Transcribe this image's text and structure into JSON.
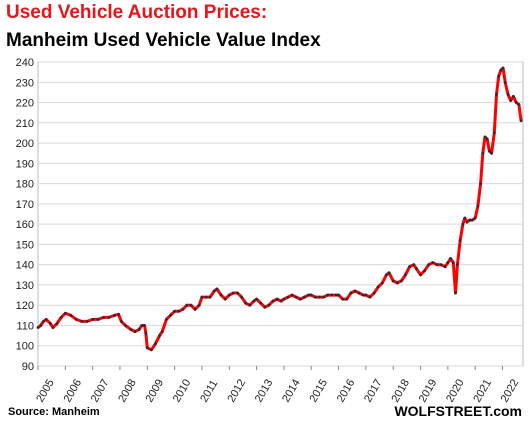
{
  "title": "Used Vehicle Auction Prices:",
  "subtitle": "Manheim Used Vehicle Value Index",
  "source": "Source: Manheim",
  "watermark": "WOLFSTREET.com",
  "colors": {
    "title": "#e8131b",
    "line": "#ff0000",
    "marker": "#2b2b3a",
    "grid": "#d9d9d9"
  },
  "chart_data": {
    "type": "line",
    "title": "Manheim Used Vehicle Value Index",
    "xlabel": "",
    "ylabel": "",
    "ylim": [
      90,
      240
    ],
    "xlim": [
      2005,
      2022.75
    ],
    "y_ticks": [
      90,
      100,
      110,
      120,
      130,
      140,
      150,
      160,
      170,
      180,
      190,
      200,
      210,
      220,
      230,
      240
    ],
    "x_tick_labels": [
      "2005",
      "2006",
      "2007",
      "2008",
      "2009",
      "2010",
      "2011",
      "2012",
      "2013",
      "2014",
      "2015",
      "2016",
      "2017",
      "2018",
      "2019",
      "2020",
      "2021",
      "2022"
    ],
    "grid": true,
    "series": [
      {
        "points": [
          [
            2005.0,
            109
          ],
          [
            2005.1,
            110
          ],
          [
            2005.2,
            112
          ],
          [
            2005.3,
            113
          ],
          [
            2005.45,
            111
          ],
          [
            2005.55,
            109
          ],
          [
            2005.7,
            111
          ],
          [
            2005.85,
            114
          ],
          [
            2006.0,
            116
          ],
          [
            2006.2,
            115
          ],
          [
            2006.4,
            113
          ],
          [
            2006.6,
            112
          ],
          [
            2006.8,
            112
          ],
          [
            2007.0,
            113
          ],
          [
            2007.2,
            113
          ],
          [
            2007.4,
            114
          ],
          [
            2007.6,
            114
          ],
          [
            2007.8,
            115
          ],
          [
            2007.95,
            115.5
          ],
          [
            2008.05,
            112
          ],
          [
            2008.2,
            110
          ],
          [
            2008.4,
            108
          ],
          [
            2008.55,
            107
          ],
          [
            2008.7,
            108
          ],
          [
            2008.8,
            110
          ],
          [
            2008.9,
            110
          ],
          [
            2008.95,
            106
          ],
          [
            2009.0,
            99
          ],
          [
            2009.15,
            98
          ],
          [
            2009.3,
            101
          ],
          [
            2009.45,
            105
          ],
          [
            2009.55,
            107
          ],
          [
            2009.7,
            113
          ],
          [
            2009.85,
            115
          ],
          [
            2010.0,
            117
          ],
          [
            2010.15,
            117
          ],
          [
            2010.3,
            118
          ],
          [
            2010.45,
            120
          ],
          [
            2010.6,
            120
          ],
          [
            2010.75,
            118
          ],
          [
            2010.9,
            120
          ],
          [
            2011.0,
            124
          ],
          [
            2011.15,
            124
          ],
          [
            2011.3,
            124
          ],
          [
            2011.45,
            127
          ],
          [
            2011.55,
            128
          ],
          [
            2011.7,
            125
          ],
          [
            2011.85,
            123
          ],
          [
            2012.0,
            125
          ],
          [
            2012.15,
            126
          ],
          [
            2012.3,
            126
          ],
          [
            2012.45,
            124
          ],
          [
            2012.6,
            121
          ],
          [
            2012.75,
            120
          ],
          [
            2012.9,
            122
          ],
          [
            2013.0,
            123
          ],
          [
            2013.15,
            121
          ],
          [
            2013.3,
            119
          ],
          [
            2013.45,
            120
          ],
          [
            2013.6,
            122
          ],
          [
            2013.75,
            123
          ],
          [
            2013.9,
            122
          ],
          [
            2014.0,
            123
          ],
          [
            2014.15,
            124
          ],
          [
            2014.3,
            125
          ],
          [
            2014.45,
            124
          ],
          [
            2014.6,
            123
          ],
          [
            2014.75,
            124
          ],
          [
            2014.9,
            125
          ],
          [
            2015.0,
            125
          ],
          [
            2015.15,
            124
          ],
          [
            2015.3,
            124
          ],
          [
            2015.45,
            124
          ],
          [
            2015.6,
            125
          ],
          [
            2015.75,
            125
          ],
          [
            2015.9,
            125
          ],
          [
            2016.0,
            125
          ],
          [
            2016.15,
            123
          ],
          [
            2016.3,
            123
          ],
          [
            2016.45,
            126
          ],
          [
            2016.6,
            127
          ],
          [
            2016.75,
            126
          ],
          [
            2016.9,
            125
          ],
          [
            2017.0,
            125
          ],
          [
            2017.15,
            124
          ],
          [
            2017.3,
            126
          ],
          [
            2017.45,
            129
          ],
          [
            2017.6,
            131
          ],
          [
            2017.75,
            135
          ],
          [
            2017.85,
            136
          ],
          [
            2018.0,
            132
          ],
          [
            2018.15,
            131
          ],
          [
            2018.3,
            132
          ],
          [
            2018.45,
            135
          ],
          [
            2018.6,
            139
          ],
          [
            2018.75,
            140
          ],
          [
            2018.85,
            138
          ],
          [
            2019.0,
            135
          ],
          [
            2019.15,
            137
          ],
          [
            2019.3,
            140
          ],
          [
            2019.45,
            141
          ],
          [
            2019.6,
            140
          ],
          [
            2019.75,
            140
          ],
          [
            2019.9,
            139
          ],
          [
            2020.0,
            141
          ],
          [
            2020.1,
            143
          ],
          [
            2020.2,
            141
          ],
          [
            2020.28,
            126
          ],
          [
            2020.35,
            140
          ],
          [
            2020.45,
            152
          ],
          [
            2020.55,
            160
          ],
          [
            2020.62,
            163
          ],
          [
            2020.7,
            161
          ],
          [
            2020.8,
            162
          ],
          [
            2020.9,
            162
          ],
          [
            2021.0,
            163
          ],
          [
            2021.1,
            169
          ],
          [
            2021.2,
            180
          ],
          [
            2021.28,
            195
          ],
          [
            2021.36,
            203
          ],
          [
            2021.44,
            202
          ],
          [
            2021.52,
            196
          ],
          [
            2021.6,
            195
          ],
          [
            2021.7,
            205
          ],
          [
            2021.78,
            224
          ],
          [
            2021.86,
            233
          ],
          [
            2021.94,
            236
          ],
          [
            2022.02,
            237
          ],
          [
            2022.1,
            230
          ],
          [
            2022.2,
            224
          ],
          [
            2022.3,
            221
          ],
          [
            2022.4,
            223
          ],
          [
            2022.5,
            220
          ],
          [
            2022.6,
            219
          ],
          [
            2022.68,
            211
          ]
        ]
      }
    ]
  }
}
